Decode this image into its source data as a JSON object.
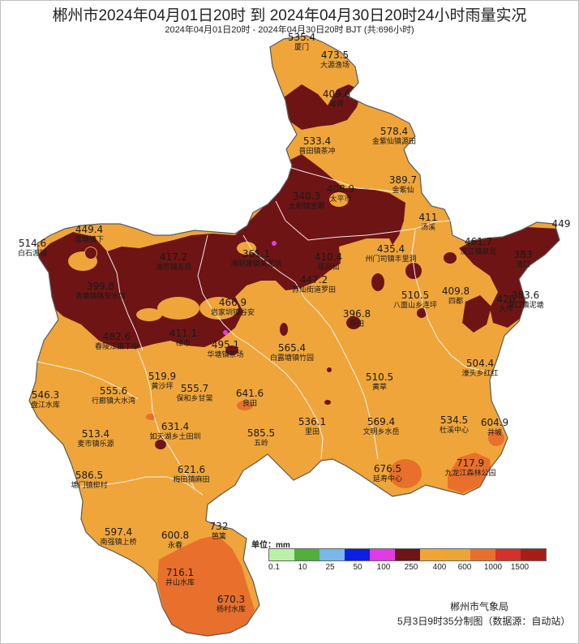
{
  "title": "郴州市2024年04月01日20时 到 2024年04月30日20时24小时雨量实况",
  "subtitle": "2024年04月01日20时 - 2024年04月30日20时 BJT (共:696小时)",
  "legend": {
    "unit": "单位：mm",
    "colors": [
      "#b9f2a6",
      "#4fb03a",
      "#79b7ec",
      "#0b1ee6",
      "#e23ae6",
      "#6e1414",
      "#f2a535",
      "#eda538",
      "#e8702c",
      "#d2322a",
      "#a51f17"
    ],
    "ticks": [
      "0.1",
      "10",
      "25",
      "50",
      "100",
      "250",
      "400",
      "600",
      "1000",
      "1500"
    ]
  },
  "colors": {
    "base": "#efa53a",
    "heavy": "#6e1414",
    "high": "#e8702c",
    "station_dot": "#e040e8"
  },
  "stations": [
    {
      "value": "535.4",
      "name": "厦门"
    },
    {
      "value": "473.5",
      "name": "大源渔场"
    },
    {
      "value": "409.6",
      "name": "坳背"
    },
    {
      "value": "578.4",
      "name": "金紫仙镇源田"
    },
    {
      "value": "533.4",
      "name": "普田镇茶冲"
    },
    {
      "value": "389.7",
      "name": "金紫仙"
    },
    {
      "value": "408.9",
      "name": "太平市"
    },
    {
      "value": "340.3",
      "name": "太和镇宝聊"
    },
    {
      "value": "411",
      "name": "汤溪"
    },
    {
      "value": "449",
      "name": ""
    },
    {
      "value": "449.4",
      "name": "莲塘镇下"
    },
    {
      "value": "514.6",
      "name": "白石渡镇"
    },
    {
      "value": "417.2",
      "name": "油市镇五段"
    },
    {
      "value": "361.1",
      "name": "湘阴渡镇黄泥坑"
    },
    {
      "value": "410.4",
      "name": "瑶岗仙"
    },
    {
      "value": "435.4",
      "name": "州门司镇丰里洞"
    },
    {
      "value": "461.7",
      "name": "汉江镇泉北"
    },
    {
      "value": "383",
      "name": "清口"
    },
    {
      "value": "399.8",
      "name": "清塘镇路安水库"
    },
    {
      "value": "447.2",
      "name": "苏仙街道罗田"
    },
    {
      "value": "466.9",
      "name": "岩家圳镇谷安"
    },
    {
      "value": "510.5",
      "name": "八面山乡连坪"
    },
    {
      "value": "409.8",
      "name": "四都"
    },
    {
      "value": "420",
      "name": "大坪"
    },
    {
      "value": "383.6",
      "name": "滁口镇泥塘"
    },
    {
      "value": "396.8",
      "name": "良田"
    },
    {
      "value": "482.6",
      "name": "春陵江镇下中"
    },
    {
      "value": "411.1",
      "name": "樟市"
    },
    {
      "value": "495.1",
      "name": "华塘镇茶场"
    },
    {
      "value": "565.4",
      "name": "白露塘镇竹园"
    },
    {
      "value": "504.4",
      "name": "濠头乡红红"
    },
    {
      "value": "546.3",
      "name": "盘江水库"
    },
    {
      "value": "555.6",
      "name": "行廊镇大水湾"
    },
    {
      "value": "519.9",
      "name": "黄沙坪"
    },
    {
      "value": "555.7",
      "name": "保和乡甘棠"
    },
    {
      "value": "641.6",
      "name": "良田"
    },
    {
      "value": "510.5",
      "name": "黄草"
    },
    {
      "value": "513.4",
      "name": "麦市镇乐源"
    },
    {
      "value": "631.4",
      "name": "如天湖乡土田圳"
    },
    {
      "value": "585.5",
      "name": "五岭"
    },
    {
      "value": "536.1",
      "name": "里田"
    },
    {
      "value": "569.4",
      "name": "文明乡水岳"
    },
    {
      "value": "534.5",
      "name": "杜溪中心"
    },
    {
      "value": "604.9",
      "name": "井坡"
    },
    {
      "value": "586.5",
      "name": "塘门镇柳村"
    },
    {
      "value": "621.6",
      "name": "梅田镇麻田"
    },
    {
      "value": "676.5",
      "name": "延寿中心"
    },
    {
      "value": "717.9",
      "name": "九龙江森林公园"
    },
    {
      "value": "597.4",
      "name": "南强镇上桥"
    },
    {
      "value": "600.8",
      "name": "永春"
    },
    {
      "value": "732",
      "name": "笆篱"
    },
    {
      "value": "716.1",
      "name": "井山水库"
    },
    {
      "value": "670.3",
      "name": "杨村水库"
    }
  ],
  "footer": {
    "org": "郴州市气象局",
    "made": "5月3日9时35分制图（数据源：自动站）"
  }
}
